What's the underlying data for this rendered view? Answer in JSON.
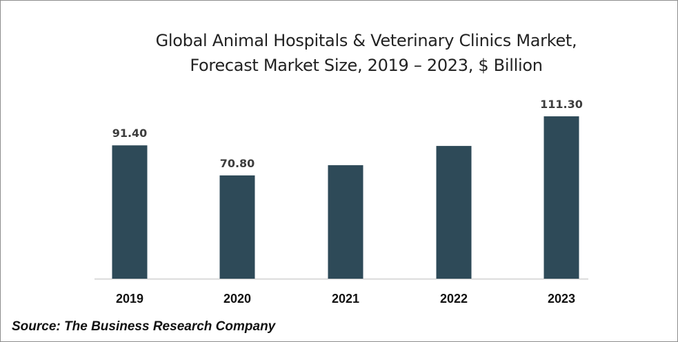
{
  "chart_data": {
    "type": "bar",
    "title": "Global Animal Hospitals & Veterinary Clinics Market,",
    "subtitle": "Forecast Market Size, 2019 – 2023, $ Billion",
    "categories": [
      "2019",
      "2020",
      "2021",
      "2022",
      "2023"
    ],
    "values": [
      91.4,
      70.8,
      77.8,
      91.0,
      111.3
    ],
    "data_labels": [
      "91.40",
      "70.80",
      "",
      "",
      "111.30"
    ],
    "xlabel": "",
    "ylabel": "",
    "ylim": [
      0,
      120
    ],
    "grid": false,
    "legend": "none",
    "bar_color": "#2e4a58"
  },
  "source": "Source: The Business Research Company"
}
